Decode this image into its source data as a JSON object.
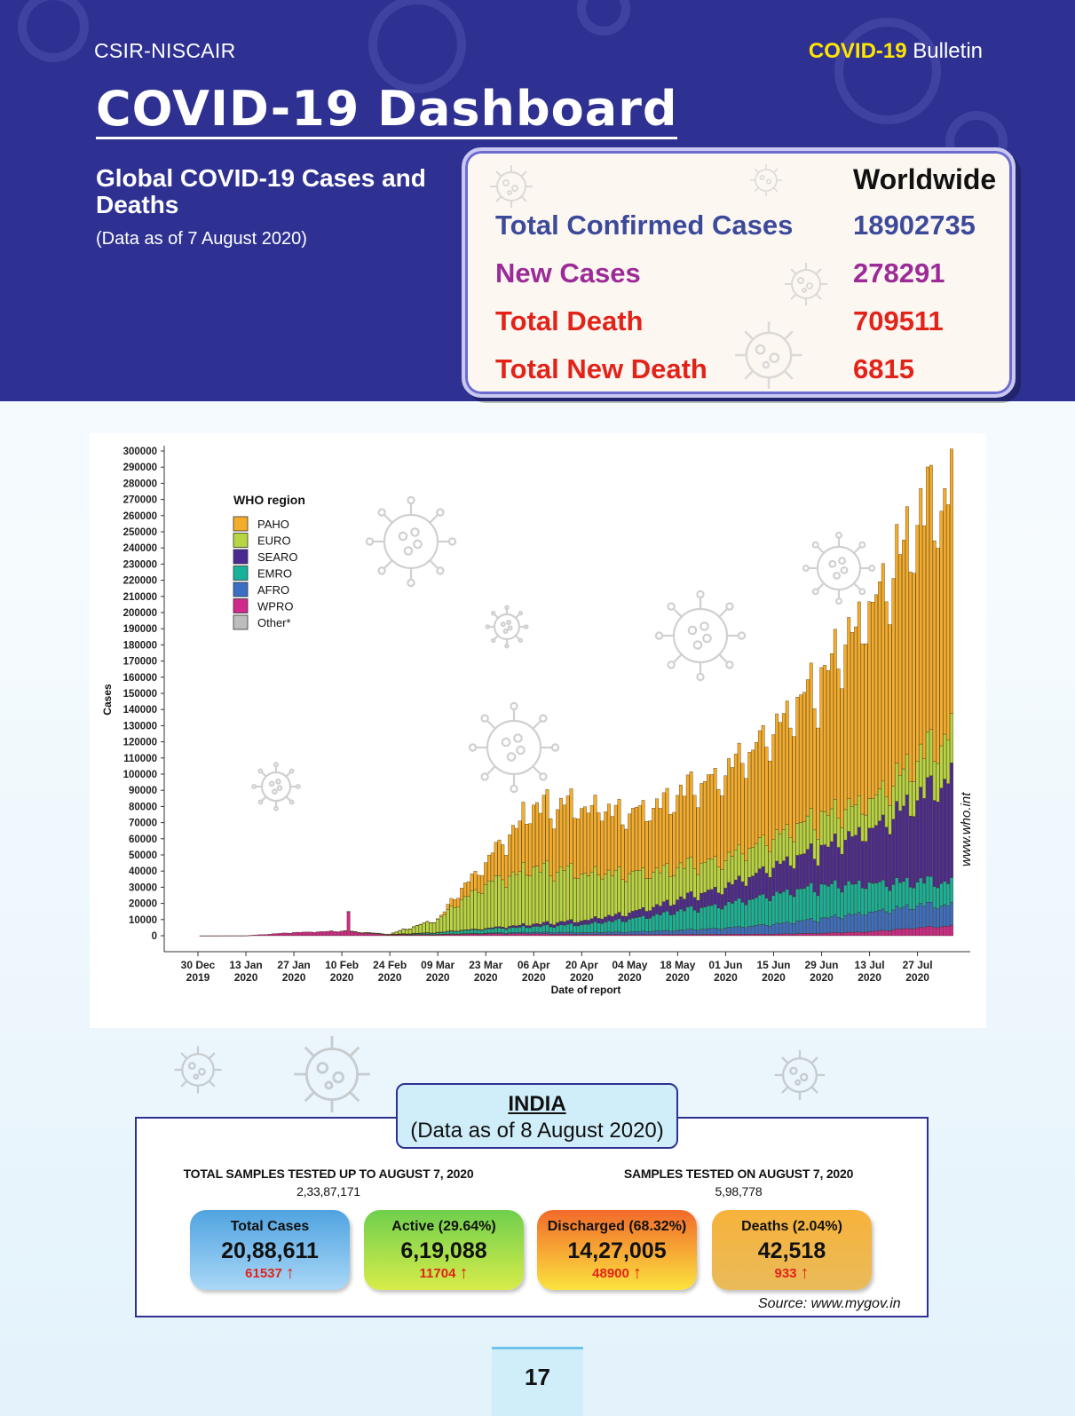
{
  "header": {
    "org": "CSIR-NISCAIR",
    "bulletin_accent": "COVID-19",
    "bulletin_rest": " Bulletin",
    "title": "COVID-19 Dashboard",
    "global_title": "Global COVID-19 Cases and Deaths",
    "global_sub": "(Data as of 7 August 2020)"
  },
  "worldwide": {
    "heading": "Worldwide",
    "rows": [
      {
        "label": "Total Confirmed Cases",
        "value": "18902735",
        "color": "#3c4a9a"
      },
      {
        "label": "New Cases",
        "value": "278291",
        "color": "#9b2b96"
      },
      {
        "label": "Total Death",
        "value": "709511",
        "color": "#e2231a"
      },
      {
        "label": "Total New Death",
        "value": "6815",
        "color": "#e2231a"
      }
    ]
  },
  "chart_data": {
    "type": "bar",
    "stacked": true,
    "xlabel": "Date of report",
    "ylabel": "Cases",
    "ylim": [
      0,
      300000
    ],
    "ytick_step": 10000,
    "legend_title": "WHO region",
    "legend_position": "top-left",
    "source": "www.who.int",
    "xticks": [
      {
        "line1": "30 Dec",
        "line2": "2019"
      },
      {
        "line1": "13 Jan",
        "line2": "2020"
      },
      {
        "line1": "27 Jan",
        "line2": "2020"
      },
      {
        "line1": "10 Feb",
        "line2": "2020"
      },
      {
        "line1": "24 Feb",
        "line2": "2020"
      },
      {
        "line1": "09 Mar",
        "line2": "2020"
      },
      {
        "line1": "23 Mar",
        "line2": "2020"
      },
      {
        "line1": "06 Apr",
        "line2": "2020"
      },
      {
        "line1": "20 Apr",
        "line2": "2020"
      },
      {
        "line1": "04 May",
        "line2": "2020"
      },
      {
        "line1": "18 May",
        "line2": "2020"
      },
      {
        "line1": "01 Jun",
        "line2": "2020"
      },
      {
        "line1": "15 Jun",
        "line2": "2020"
      },
      {
        "line1": "29 Jun",
        "line2": "2020"
      },
      {
        "line1": "13 Jul",
        "line2": "2020"
      },
      {
        "line1": "27 Jul",
        "line2": "2020"
      }
    ],
    "series": [
      {
        "name": "Other*",
        "color": "#bdbdbd"
      },
      {
        "name": "WPRO",
        "color": "#d1288c"
      },
      {
        "name": "AFRO",
        "color": "#3b6fc4"
      },
      {
        "name": "EMRO",
        "color": "#16b39a"
      },
      {
        "name": "SEARO",
        "color": "#4a2a91"
      },
      {
        "name": "EURO",
        "color": "#b7d443"
      },
      {
        "name": "PAHO",
        "color": "#f4ac2b"
      }
    ],
    "legend_order": [
      "PAHO",
      "EURO",
      "SEARO",
      "EMRO",
      "AFRO",
      "WPRO",
      "Other*"
    ],
    "anchors": {
      "note": "approximate daily totals by region at biweekly dates (cases)",
      "days": [
        0,
        14,
        28,
        42,
        56,
        70,
        84,
        98,
        112,
        126,
        140,
        154,
        168,
        182,
        196,
        210,
        220
      ],
      "WPRO": [
        0,
        50,
        2000,
        3000,
        700,
        800,
        1200,
        1200,
        800,
        700,
        800,
        900,
        1000,
        1500,
        2500,
        5000,
        6000
      ],
      "AFRO": [
        0,
        0,
        0,
        0,
        0,
        50,
        400,
        1000,
        1200,
        1800,
        2500,
        4000,
        6000,
        9000,
        12000,
        14000,
        13000
      ],
      "EMRO": [
        0,
        0,
        0,
        0,
        100,
        1200,
        2500,
        3500,
        5000,
        8000,
        12000,
        15000,
        18000,
        20000,
        18000,
        15000,
        14000
      ],
      "SEARO": [
        0,
        0,
        0,
        0,
        0,
        50,
        500,
        1500,
        2500,
        4000,
        7000,
        11000,
        17000,
        23000,
        33000,
        52000,
        65000
      ],
      "EURO": [
        0,
        0,
        0,
        0,
        300,
        8000,
        28000,
        35000,
        30000,
        25000,
        20000,
        18000,
        18000,
        20000,
        18000,
        25000,
        28000
      ],
      "PAHO": [
        0,
        0,
        0,
        0,
        0,
        200,
        14000,
        38000,
        42000,
        38000,
        45000,
        55000,
        65000,
        85000,
        120000,
        150000,
        150000
      ]
    }
  },
  "india": {
    "title": "INDIA",
    "subtitle": "(Data as of 8 August 2020)",
    "total_samples_label": "TOTAL SAMPLES TESTED UP TO AUGUST 7, 2020",
    "total_samples_value": "2,33,87,171",
    "day_samples_label": "SAMPLES TESTED ON AUGUST 7, 2020",
    "day_samples_value": "5,98,778",
    "stats": [
      {
        "label": "Total Cases",
        "value": "20,88,611",
        "delta": "61537"
      },
      {
        "label": "Active (29.64%)",
        "value": "6,19,088",
        "delta": "11704"
      },
      {
        "label": "Discharged (68.32%)",
        "value": "14,27,005",
        "delta": "48900"
      },
      {
        "label": "Deaths (2.04%)",
        "value": "42,518",
        "delta": "933"
      }
    ],
    "source": "Source: www.mygov.in"
  },
  "page_number": "17"
}
